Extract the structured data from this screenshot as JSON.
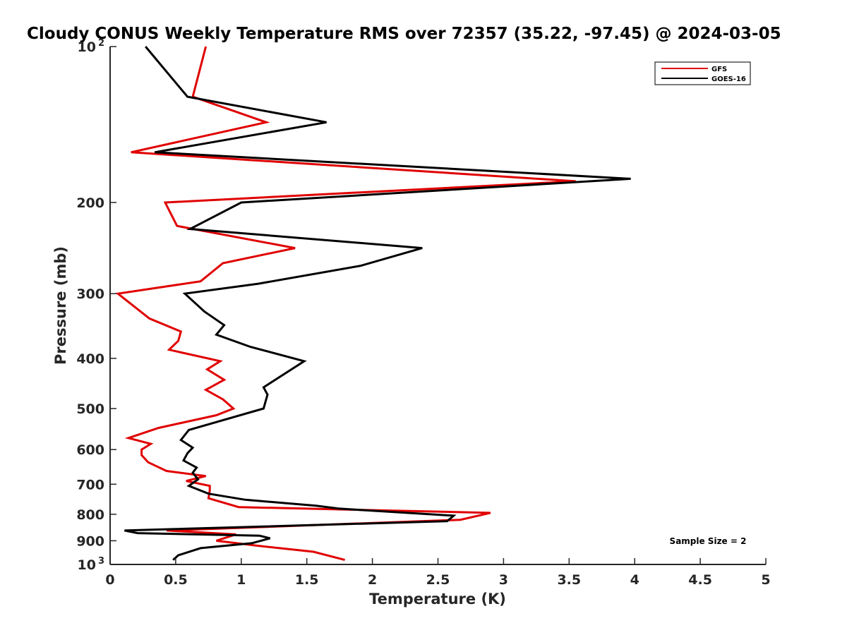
{
  "chart_data": {
    "type": "line",
    "title": "Cloudy CONUS Weekly Temperature RMS over 72357 (35.22, -97.45) @ 2024-03-05",
    "xlabel": "Temperature (K)",
    "ylabel": "Pressure (mb)",
    "xlim": [
      0,
      5
    ],
    "ylim": [
      100,
      1000
    ],
    "y_scale": "log",
    "y_reversed": true,
    "xticks": [
      "0",
      "0.5",
      "1",
      "1.5",
      "2",
      "2.5",
      "3",
      "3.5",
      "4",
      "4.5",
      "5"
    ],
    "yticks": [
      {
        "value": 100,
        "label": "10",
        "sup": "2"
      },
      {
        "value": 200,
        "label": "200"
      },
      {
        "value": 300,
        "label": "300"
      },
      {
        "value": 400,
        "label": "400"
      },
      {
        "value": 500,
        "label": "500"
      },
      {
        "value": 600,
        "label": "600"
      },
      {
        "value": 700,
        "label": "700"
      },
      {
        "value": 800,
        "label": "800"
      },
      {
        "value": 900,
        "label": "900"
      },
      {
        "value": 1000,
        "label": "10",
        "sup": "3"
      }
    ],
    "grid": false,
    "legend_position": "top-right",
    "annotation": "Sample Size = 2",
    "series": [
      {
        "name": "GFS",
        "color": "#e00000",
        "points": [
          [
            0.73,
            100
          ],
          [
            0.63,
            125
          ],
          [
            1.19,
            140
          ],
          [
            0.16,
            160
          ],
          [
            3.55,
            182
          ],
          [
            0.42,
            200
          ],
          [
            0.51,
            222
          ],
          [
            1.41,
            245
          ],
          [
            0.86,
            262
          ],
          [
            0.69,
            284
          ],
          [
            0.06,
            300
          ],
          [
            0.3,
            335
          ],
          [
            0.54,
            355
          ],
          [
            0.52,
            370
          ],
          [
            0.45,
            385
          ],
          [
            0.84,
            405
          ],
          [
            0.74,
            420
          ],
          [
            0.87,
            440
          ],
          [
            0.73,
            460
          ],
          [
            0.86,
            480
          ],
          [
            0.94,
            500
          ],
          [
            0.81,
            515
          ],
          [
            0.37,
            545
          ],
          [
            0.14,
            570
          ],
          [
            0.31,
            585
          ],
          [
            0.24,
            600
          ],
          [
            0.24,
            615
          ],
          [
            0.29,
            635
          ],
          [
            0.43,
            660
          ],
          [
            0.73,
            675
          ],
          [
            0.58,
            690
          ],
          [
            0.76,
            705
          ],
          [
            0.76,
            720
          ],
          [
            0.75,
            745
          ],
          [
            0.98,
            775
          ],
          [
            2.9,
            795
          ],
          [
            2.67,
            820
          ],
          [
            0.43,
            860
          ],
          [
            0.96,
            875
          ],
          [
            0.81,
            900
          ],
          [
            1.12,
            920
          ],
          [
            1.55,
            945
          ],
          [
            1.79,
            980
          ]
        ]
      },
      {
        "name": "GOES-16",
        "color": "#000000",
        "points": [
          [
            0.27,
            100
          ],
          [
            0.59,
            125
          ],
          [
            1.65,
            140
          ],
          [
            0.34,
            160
          ],
          [
            3.97,
            180
          ],
          [
            1.0,
            200
          ],
          [
            0.61,
            225
          ],
          [
            2.38,
            245
          ],
          [
            1.91,
            265
          ],
          [
            1.13,
            287
          ],
          [
            0.57,
            300
          ],
          [
            0.72,
            325
          ],
          [
            0.87,
            345
          ],
          [
            0.81,
            360
          ],
          [
            1.07,
            380
          ],
          [
            1.48,
            405
          ],
          [
            1.32,
            430
          ],
          [
            1.17,
            455
          ],
          [
            1.2,
            470
          ],
          [
            1.17,
            500
          ],
          [
            0.6,
            550
          ],
          [
            0.54,
            575
          ],
          [
            0.63,
            595
          ],
          [
            0.59,
            610
          ],
          [
            0.56,
            630
          ],
          [
            0.66,
            650
          ],
          [
            0.63,
            665
          ],
          [
            0.67,
            685
          ],
          [
            0.6,
            705
          ],
          [
            0.75,
            730
          ],
          [
            1.03,
            750
          ],
          [
            1.57,
            770
          ],
          [
            1.74,
            780
          ],
          [
            2.62,
            805
          ],
          [
            2.57,
            825
          ],
          [
            0.11,
            860
          ],
          [
            0.21,
            870
          ],
          [
            1.14,
            880
          ],
          [
            1.22,
            890
          ],
          [
            1.08,
            910
          ],
          [
            0.69,
            930
          ],
          [
            0.52,
            960
          ],
          [
            0.48,
            980
          ]
        ]
      }
    ]
  }
}
